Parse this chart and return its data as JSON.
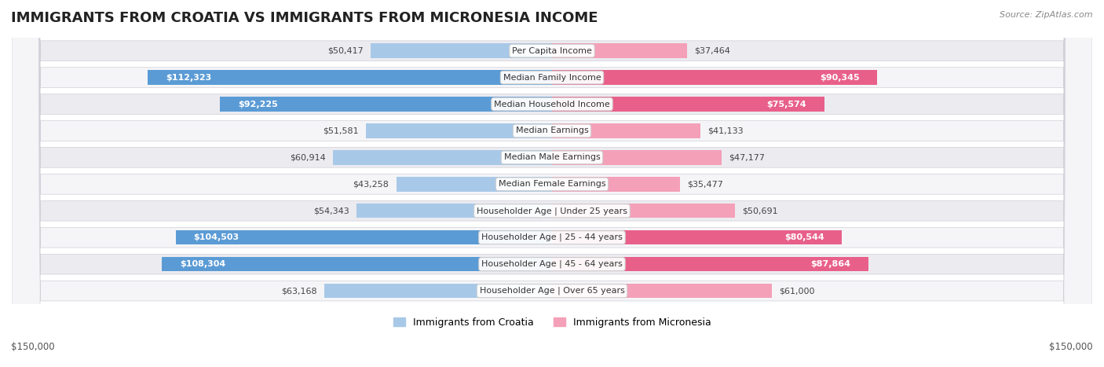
{
  "title": "IMMIGRANTS FROM CROATIA VS IMMIGRANTS FROM MICRONESIA INCOME",
  "source": "Source: ZipAtlas.com",
  "categories": [
    "Per Capita Income",
    "Median Family Income",
    "Median Household Income",
    "Median Earnings",
    "Median Male Earnings",
    "Median Female Earnings",
    "Householder Age | Under 25 years",
    "Householder Age | 25 - 44 years",
    "Householder Age | 45 - 64 years",
    "Householder Age | Over 65 years"
  ],
  "croatia_values": [
    50417,
    112323,
    92225,
    51581,
    60914,
    43258,
    54343,
    104503,
    108304,
    63168
  ],
  "micronesia_values": [
    37464,
    90345,
    75574,
    41133,
    47177,
    35477,
    50691,
    80544,
    87864,
    61000
  ],
  "croatia_color_light": "#a8c8e8",
  "croatia_color_dark": "#5b9bd5",
  "micronesia_color_light": "#f4a0b8",
  "micronesia_color_dark": "#e8608a",
  "axis_max": 150000,
  "legend_croatia": "Immigrants from Croatia",
  "legend_micronesia": "Immigrants from Micronesia",
  "bg_color": "#ffffff",
  "row_bg_color": "#f0f0f5",
  "title_fontsize": 13,
  "label_fontsize": 8.5,
  "value_fontsize": 8,
  "axis_label": "$150,000"
}
